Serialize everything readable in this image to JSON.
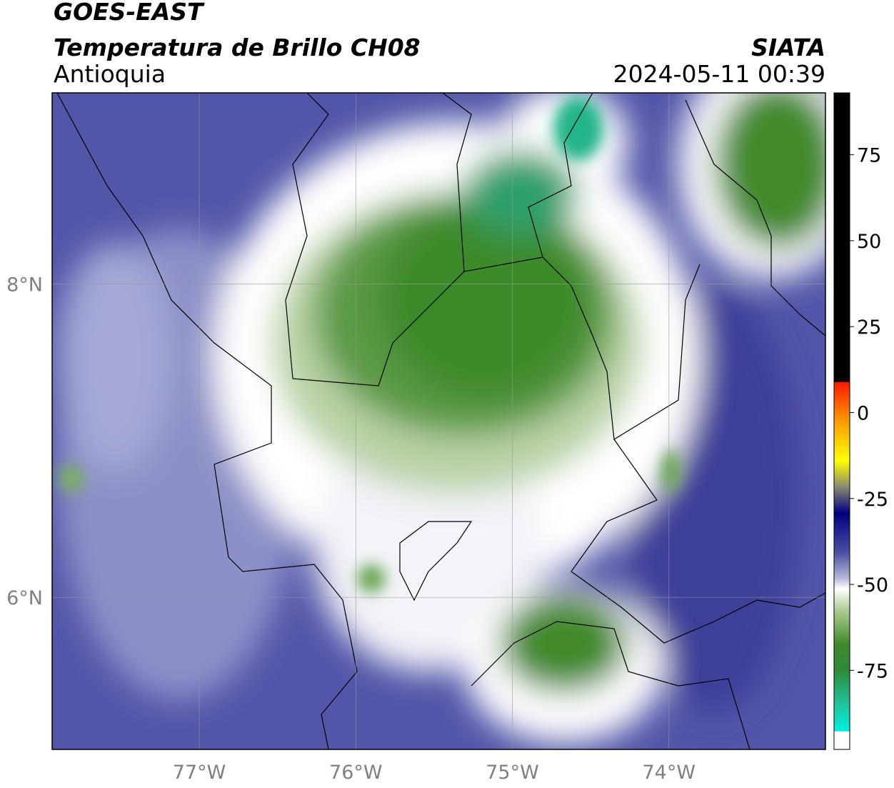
{
  "header": {
    "title": "GOES-EAST",
    "subtitle": "Temperatura de Brillo CH08",
    "region": "Antioquia",
    "source": "SIATA",
    "datetime": "2024-05-11 00:39"
  },
  "map": {
    "xlim": [
      -77.94,
      -73.0
    ],
    "ylim": [
      5.03,
      9.22
    ],
    "xticks": [
      {
        "value": -77,
        "label": "77°W"
      },
      {
        "value": -76,
        "label": "76°W"
      },
      {
        "value": -75,
        "label": "75°W"
      },
      {
        "value": -74,
        "label": "74°W"
      }
    ],
    "yticks": [
      {
        "value": 8,
        "label": "8°N"
      },
      {
        "value": 6,
        "label": "6°N"
      }
    ],
    "grid": true
  },
  "colorbar": {
    "lim": [
      -98,
      93
    ],
    "ticks": [
      75,
      50,
      25,
      0,
      -25,
      -50,
      -75
    ]
  }
}
